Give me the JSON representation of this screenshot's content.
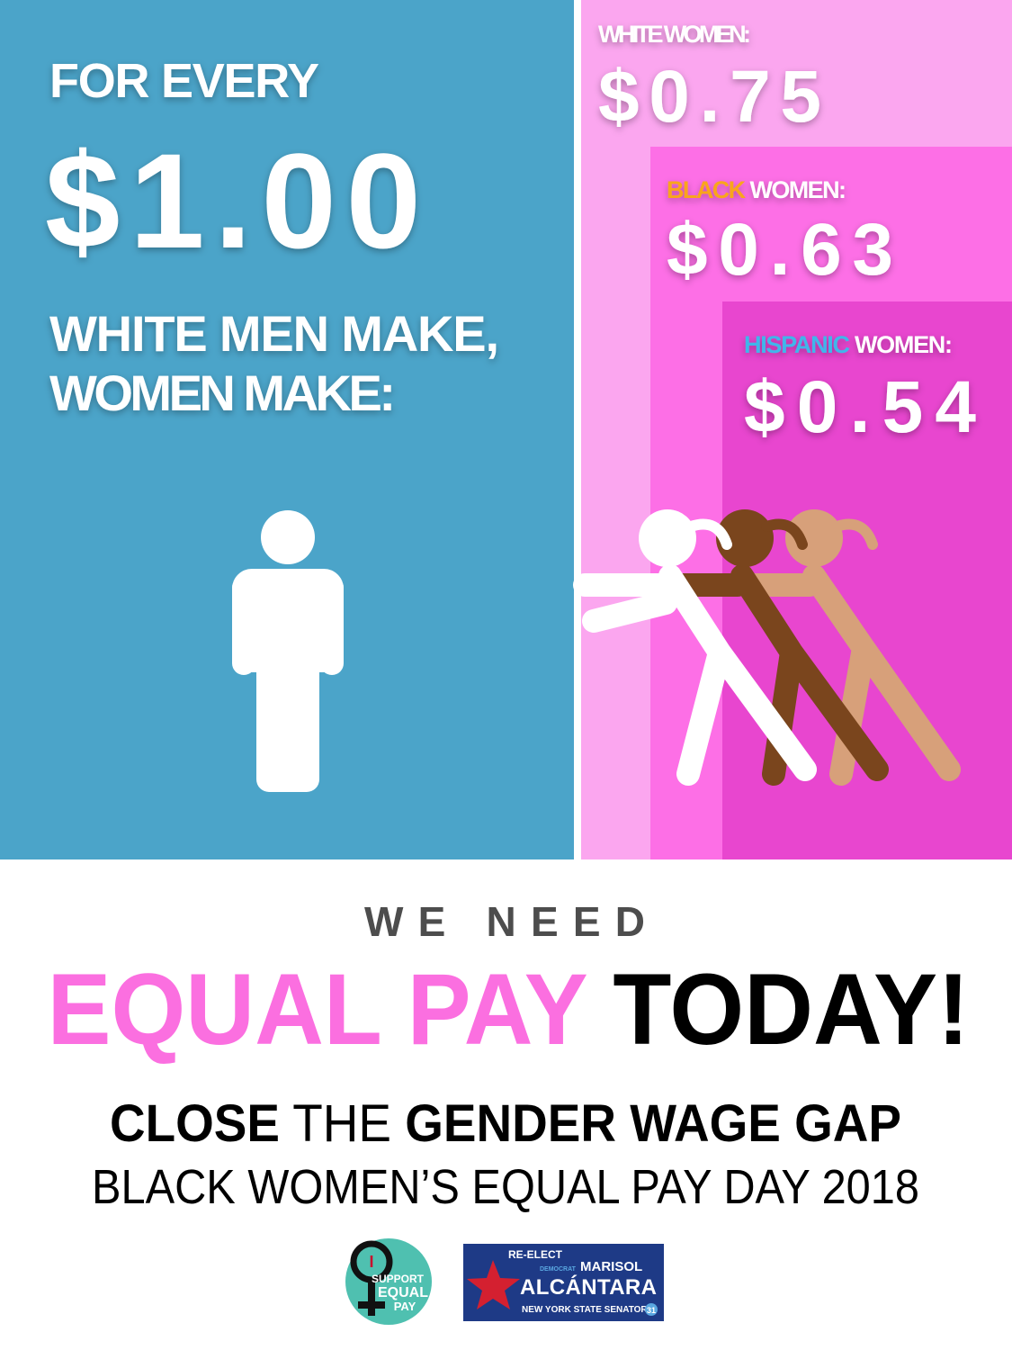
{
  "left": {
    "lead": "FOR EVERY",
    "amount": "$1.00",
    "line1": "WHITE MEN MAKE,",
    "line2": "WOMEN MAKE:"
  },
  "groups": [
    {
      "label": "WHITE WOMEN:",
      "amount": "$0.75"
    },
    {
      "highlight": "BLACK",
      "label": " WOMEN:",
      "amount": "$0.63"
    },
    {
      "highlight": "HISPANIC",
      "label": " WOMEN:",
      "amount": "$0.54"
    }
  ],
  "footer": {
    "kicker": "WE NEED",
    "headline_pink": "EQUAL PAY",
    "headline_black": " TODAY!",
    "close": "CLOSE",
    "the": " THE ",
    "gap": "GENDER WAGE GAP",
    "event": "BLACK WOMEN’S EQUAL PAY DAY 2018"
  },
  "badge": {
    "i": "I",
    "support": "SUPPORT",
    "equal": "EQUAL",
    "pay": "PAY"
  },
  "campaign": {
    "reelect": "RE-ELECT",
    "party": "DEMOCRAT",
    "first": "MARISOL",
    "last": "ALCÁNTARA",
    "office": "NEW YORK STATE SENATOR",
    "district": "31"
  }
}
